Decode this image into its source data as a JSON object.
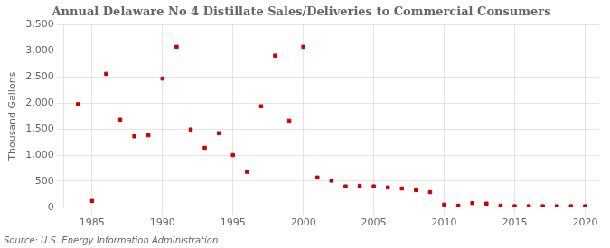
{
  "chart_data": {
    "type": "scatter",
    "title": "Annual Delaware No 4 Distillate Sales/Deliveries to Commercial Consumers",
    "ylabel": "Thousand Gallons",
    "annotations": [
      "Source: U.S. Energy Information Administration"
    ],
    "x": [
      1984,
      1985,
      1986,
      1987,
      1988,
      1989,
      1990,
      1991,
      1992,
      1993,
      1994,
      1995,
      1996,
      1997,
      1998,
      1999,
      2000,
      2001,
      2002,
      2003,
      2004,
      2005,
      2006,
      2007,
      2008,
      2009,
      2010,
      2011,
      2012,
      2013,
      2014,
      2015,
      2016,
      2017,
      2018,
      2019,
      2020
    ],
    "values": [
      1980,
      120,
      2560,
      1680,
      1360,
      1380,
      2470,
      3080,
      1490,
      1140,
      1420,
      1000,
      680,
      1940,
      2910,
      1660,
      3080,
      570,
      510,
      400,
      410,
      400,
      380,
      360,
      330,
      290,
      50,
      30,
      80,
      70,
      30,
      20,
      20,
      20,
      20,
      20,
      20
    ],
    "color": "#CC0000",
    "marker": "square",
    "xlim": [
      1983,
      2021
    ],
    "ylim": [
      0,
      3500
    ],
    "xticks": [
      1985,
      1990,
      1995,
      2000,
      2005,
      2010,
      2015,
      2020
    ],
    "yticks": [
      0,
      500,
      {
        "value": 1000,
        "label": "1,000"
      },
      {
        "value": 1500,
        "label": "1,500"
      },
      {
        "value": 2000,
        "label": "2,000"
      },
      {
        "value": 2500,
        "label": "2,500"
      },
      {
        "value": 3000,
        "label": "3,000"
      },
      {
        "value": 3500,
        "label": "3,500"
      }
    ],
    "grid": true
  }
}
